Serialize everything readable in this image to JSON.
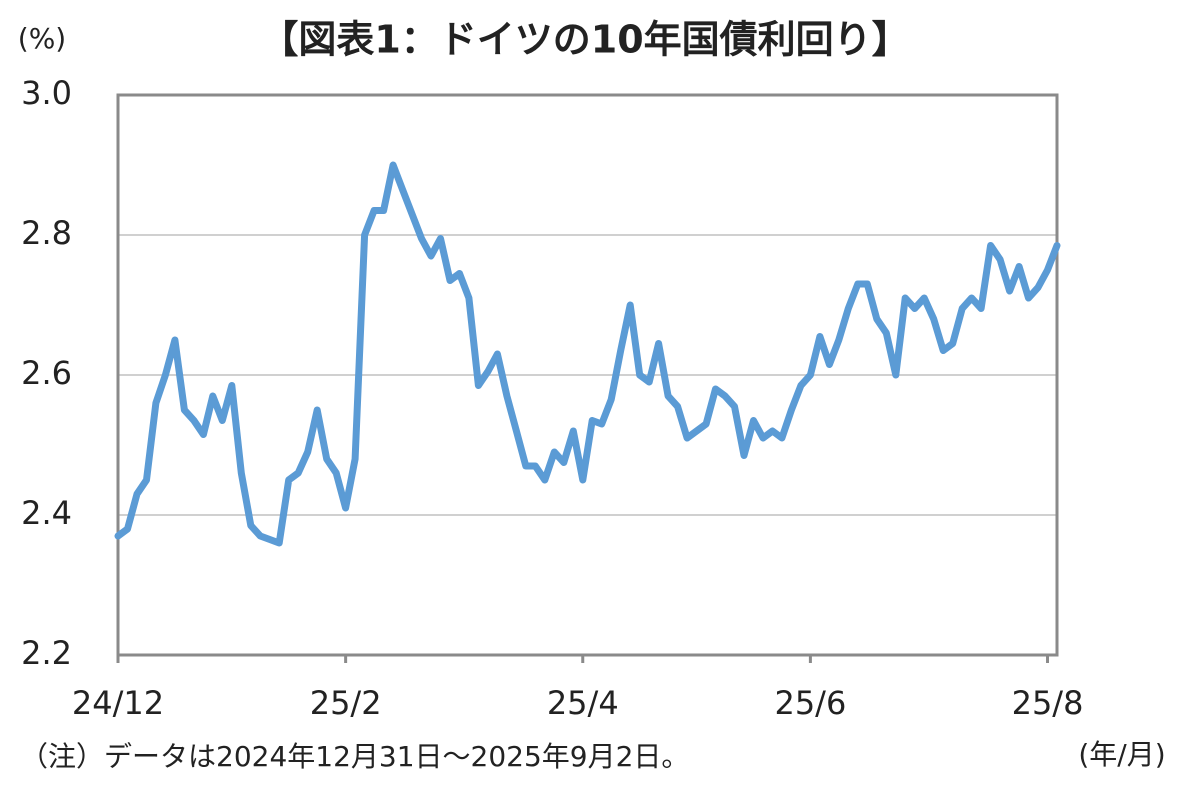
{
  "chart_data": {
    "type": "line",
    "title": "【図表1：ドイツの10年国債利回り】",
    "y_label": "(%)",
    "x_label": "(年/月)",
    "note": "（注）データは2024年12月31日～2025年9月2日。",
    "color": "#5b9bd5",
    "grid": true,
    "ylim": [
      2.2,
      3.0
    ],
    "yticks": [
      2.2,
      2.4,
      2.6,
      2.8,
      {
        "value": 3.0,
        "label": "3.0"
      }
    ],
    "categories": [
      "24/12",
      null,
      null,
      null,
      null,
      null,
      null,
      null,
      null,
      null,
      null,
      null,
      null,
      null,
      null,
      null,
      null,
      null,
      null,
      null,
      null,
      null,
      null,
      null,
      "25/2",
      null,
      null,
      null,
      null,
      null,
      null,
      null,
      null,
      null,
      null,
      null,
      null,
      null,
      null,
      null,
      null,
      null,
      null,
      null,
      null,
      null,
      null,
      null,
      null,
      "25/4",
      null,
      null,
      null,
      null,
      null,
      null,
      null,
      null,
      null,
      null,
      null,
      null,
      null,
      null,
      null,
      null,
      null,
      null,
      null,
      null,
      null,
      null,
      null,
      "25/6",
      null,
      null,
      null,
      null,
      null,
      null,
      null,
      null,
      null,
      null,
      null,
      null,
      null,
      null,
      null,
      null,
      null,
      null,
      null,
      null,
      null,
      null,
      null,
      null,
      "25/8",
      null
    ],
    "values": [
      2.37,
      2.38,
      2.43,
      2.45,
      2.56,
      2.6,
      2.65,
      2.55,
      2.535,
      2.515,
      2.57,
      2.535,
      2.585,
      2.46,
      2.385,
      2.37,
      2.365,
      2.36,
      2.45,
      2.46,
      2.49,
      2.55,
      2.48,
      2.46,
      2.41,
      2.48,
      2.8,
      2.835,
      2.835,
      2.9,
      2.865,
      2.83,
      2.795,
      2.77,
      2.795,
      2.735,
      2.745,
      2.71,
      2.585,
      2.605,
      2.63,
      2.57,
      2.52,
      2.47,
      2.47,
      2.45,
      2.49,
      2.475,
      2.52,
      2.45,
      2.535,
      2.53,
      2.565,
      2.635,
      2.7,
      2.6,
      2.59,
      2.645,
      2.57,
      2.555,
      2.51,
      2.52,
      2.53,
      2.58,
      2.57,
      2.555,
      2.485,
      2.535,
      2.51,
      2.52,
      2.51,
      2.55,
      2.585,
      2.6,
      2.655,
      2.615,
      2.65,
      2.695,
      2.73,
      2.73,
      2.68,
      2.66,
      2.6,
      2.71,
      2.695,
      2.71,
      2.68,
      2.635,
      2.645,
      2.695,
      2.71,
      2.695,
      2.785,
      2.765,
      2.72,
      2.755,
      2.71,
      2.725,
      2.75,
      2.785
    ]
  }
}
